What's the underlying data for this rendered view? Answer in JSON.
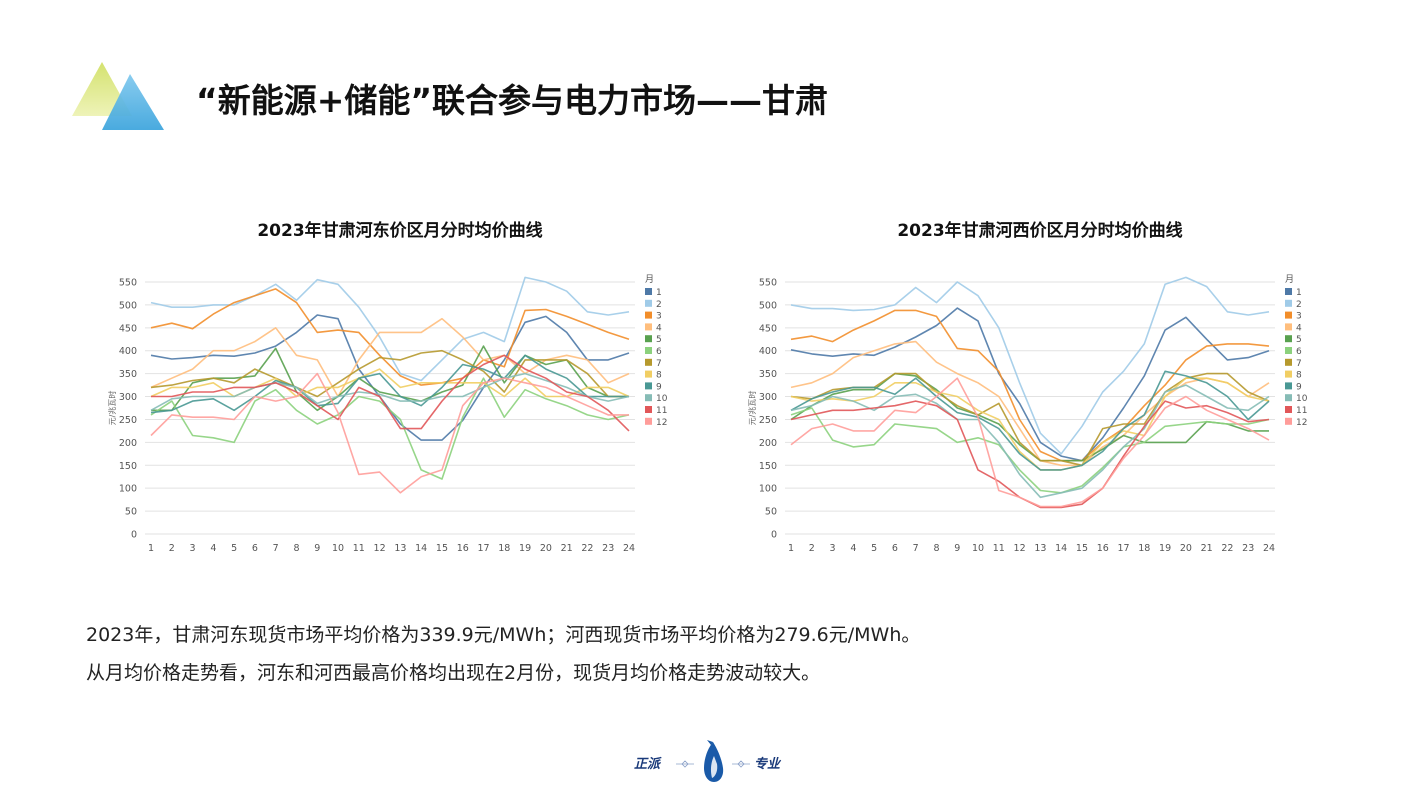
{
  "page": {
    "title": "“新能源+储能”联合参与电力市场——甘肃",
    "body_line1": "2023年，甘肃河东现货市场平均价格为339.9元/MWh；河西现货市场平均价格为279.6元/MWh。",
    "body_line2": "从月均价格走势看，河东和河西最高价格均出现在2月份，现货月均价格走势波动较大。"
  },
  "footer": {
    "left_text": "正派",
    "right_text": "专业",
    "icon": "penguin-logo-icon"
  },
  "logo": {
    "icon": "triangles-logo-icon",
    "colors": [
      "#c9dd6a",
      "#5ab7e6"
    ]
  },
  "chart_data": [
    {
      "type": "line",
      "title": "2023年甘肃河东价区月分时均价曲线",
      "ylabel": "元/兆瓦时",
      "ylim": [
        0,
        550
      ],
      "yticks": [
        0,
        50,
        100,
        150,
        200,
        250,
        300,
        350,
        400,
        450,
        500,
        550
      ],
      "x": [
        "1",
        "2",
        "3",
        "4",
        "5",
        "6",
        "7",
        "8",
        "9",
        "10",
        "11",
        "12",
        "13",
        "14",
        "15",
        "16",
        "17",
        "18",
        "19",
        "20",
        "21",
        "22",
        "23",
        "24"
      ],
      "legend_title": "月",
      "legend_position": "right",
      "grid": true,
      "series": [
        {
          "name": "1",
          "color": "#4e79a7",
          "values": [
            390,
            382,
            385,
            390,
            388,
            395,
            410,
            440,
            478,
            470,
            360,
            300,
            240,
            205,
            205,
            248,
            320,
            380,
            462,
            475,
            440,
            380,
            380,
            395
          ]
        },
        {
          "name": "2",
          "color": "#a0cbe8",
          "values": [
            505,
            495,
            495,
            500,
            500,
            520,
            545,
            510,
            555,
            545,
            495,
            430,
            350,
            335,
            380,
            425,
            440,
            420,
            560,
            550,
            530,
            485,
            478,
            485
          ]
        },
        {
          "name": "3",
          "color": "#f28e2b",
          "values": [
            450,
            460,
            448,
            480,
            505,
            520,
            535,
            505,
            440,
            445,
            440,
            390,
            345,
            325,
            330,
            340,
            380,
            365,
            488,
            490,
            475,
            458,
            440,
            425
          ]
        },
        {
          "name": "4",
          "color": "#ffbe7d",
          "values": [
            320,
            340,
            360,
            400,
            400,
            420,
            450,
            390,
            380,
            300,
            380,
            440,
            440,
            440,
            470,
            430,
            380,
            390,
            350,
            380,
            390,
            380,
            330,
            350
          ]
        },
        {
          "name": "5",
          "color": "#59a14f",
          "values": [
            270,
            270,
            330,
            340,
            340,
            345,
            405,
            310,
            270,
            300,
            340,
            310,
            300,
            290,
            310,
            325,
            410,
            330,
            390,
            370,
            380,
            320,
            300,
            300
          ]
        },
        {
          "name": "6",
          "color": "#8cd17d",
          "values": [
            260,
            290,
            215,
            210,
            200,
            290,
            315,
            270,
            240,
            260,
            300,
            290,
            250,
            140,
            120,
            255,
            340,
            255,
            315,
            295,
            280,
            260,
            250,
            260
          ]
        },
        {
          "name": "7",
          "color": "#b6992d",
          "values": [
            320,
            325,
            335,
            340,
            330,
            360,
            340,
            320,
            300,
            330,
            360,
            385,
            380,
            395,
            400,
            380,
            355,
            310,
            380,
            380,
            380,
            350,
            300,
            300
          ]
        },
        {
          "name": "8",
          "color": "#f1ce63",
          "values": [
            300,
            320,
            320,
            330,
            300,
            320,
            340,
            300,
            320,
            320,
            340,
            360,
            320,
            330,
            330,
            330,
            330,
            300,
            340,
            300,
            300,
            320,
            320,
            300
          ]
        },
        {
          "name": "9",
          "color": "#499894",
          "values": [
            265,
            270,
            290,
            295,
            270,
            300,
            335,
            320,
            280,
            285,
            340,
            350,
            300,
            280,
            320,
            370,
            360,
            340,
            390,
            360,
            340,
            300,
            300,
            300
          ]
        },
        {
          "name": "10",
          "color": "#86bcb6",
          "values": [
            270,
            295,
            300,
            300,
            300,
            320,
            330,
            320,
            285,
            300,
            310,
            305,
            290,
            290,
            300,
            300,
            320,
            340,
            350,
            335,
            320,
            300,
            290,
            300
          ]
        },
        {
          "name": "11",
          "color": "#e15759",
          "values": [
            300,
            300,
            310,
            310,
            320,
            320,
            330,
            310,
            280,
            250,
            320,
            300,
            230,
            230,
            290,
            340,
            370,
            390,
            360,
            340,
            310,
            300,
            270,
            225
          ]
        },
        {
          "name": "12",
          "color": "#ff9d9a",
          "values": [
            215,
            260,
            255,
            255,
            250,
            300,
            290,
            300,
            350,
            265,
            130,
            135,
            90,
            125,
            140,
            280,
            330,
            340,
            330,
            320,
            300,
            280,
            260,
            260
          ]
        }
      ]
    },
    {
      "type": "line",
      "title": "2023年甘肃河西价区月分时均价曲线",
      "ylabel": "元/兆瓦时",
      "ylim": [
        0,
        550
      ],
      "yticks": [
        0,
        50,
        100,
        150,
        200,
        250,
        300,
        350,
        400,
        450,
        500,
        550
      ],
      "x": [
        "1",
        "2",
        "3",
        "4",
        "5",
        "6",
        "7",
        "8",
        "9",
        "10",
        "11",
        "12",
        "13",
        "14",
        "15",
        "16",
        "17",
        "18",
        "19",
        "20",
        "21",
        "22",
        "23",
        "24"
      ],
      "legend_title": "月",
      "legend_position": "right",
      "grid": true,
      "series": [
        {
          "name": "1",
          "color": "#4e79a7",
          "values": [
            402,
            393,
            388,
            393,
            390,
            408,
            430,
            455,
            493,
            465,
            350,
            285,
            200,
            170,
            160,
            210,
            275,
            345,
            445,
            473,
            425,
            380,
            385,
            400
          ]
        },
        {
          "name": "2",
          "color": "#a0cbe8",
          "values": [
            500,
            492,
            492,
            488,
            490,
            500,
            538,
            505,
            550,
            520,
            450,
            330,
            220,
            175,
            235,
            310,
            355,
            415,
            545,
            560,
            540,
            485,
            478,
            485
          ]
        },
        {
          "name": "3",
          "color": "#f28e2b",
          "values": [
            425,
            432,
            420,
            445,
            465,
            488,
            488,
            475,
            405,
            400,
            355,
            250,
            180,
            160,
            160,
            200,
            230,
            280,
            325,
            380,
            410,
            415,
            415,
            410
          ]
        },
        {
          "name": "4",
          "color": "#ffbe7d",
          "values": [
            320,
            330,
            350,
            385,
            400,
            415,
            420,
            375,
            350,
            330,
            300,
            230,
            160,
            150,
            150,
            190,
            215,
            260,
            300,
            330,
            340,
            330,
            300,
            330
          ]
        },
        {
          "name": "5",
          "color": "#59a14f",
          "values": [
            250,
            280,
            305,
            315,
            315,
            350,
            345,
            315,
            275,
            260,
            240,
            195,
            160,
            160,
            160,
            185,
            215,
            200,
            200,
            200,
            245,
            240,
            225,
            225
          ]
        },
        {
          "name": "6",
          "color": "#8cd17d",
          "values": [
            260,
            275,
            205,
            190,
            195,
            240,
            235,
            230,
            200,
            210,
            195,
            140,
            95,
            90,
            105,
            145,
            190,
            200,
            235,
            240,
            245,
            240,
            240,
            250
          ]
        },
        {
          "name": "7",
          "color": "#b6992d",
          "values": [
            300,
            295,
            315,
            320,
            320,
            350,
            350,
            310,
            280,
            260,
            285,
            200,
            160,
            160,
            150,
            230,
            240,
            240,
            310,
            340,
            350,
            350,
            310,
            290
          ]
        },
        {
          "name": "8",
          "color": "#f1ce63",
          "values": [
            300,
            290,
            295,
            290,
            300,
            330,
            330,
            310,
            300,
            270,
            250,
            180,
            140,
            140,
            150,
            200,
            225,
            215,
            300,
            340,
            340,
            330,
            300,
            290
          ]
        },
        {
          "name": "9",
          "color": "#499894",
          "values": [
            270,
            295,
            310,
            320,
            320,
            305,
            340,
            300,
            265,
            255,
            230,
            175,
            140,
            140,
            150,
            180,
            230,
            260,
            355,
            345,
            330,
            300,
            250,
            290
          ]
        },
        {
          "name": "10",
          "color": "#86bcb6",
          "values": [
            270,
            280,
            300,
            290,
            270,
            300,
            305,
            285,
            250,
            250,
            200,
            130,
            80,
            90,
            100,
            140,
            190,
            230,
            310,
            325,
            300,
            275,
            270,
            300
          ]
        },
        {
          "name": "11",
          "color": "#e15759",
          "values": [
            250,
            260,
            270,
            270,
            275,
            280,
            290,
            280,
            250,
            140,
            115,
            80,
            58,
            58,
            65,
            100,
            170,
            235,
            290,
            275,
            280,
            265,
            245,
            250
          ]
        },
        {
          "name": "12",
          "color": "#ff9d9a",
          "values": [
            195,
            230,
            240,
            225,
            225,
            270,
            265,
            300,
            340,
            255,
            95,
            80,
            60,
            60,
            70,
            100,
            165,
            215,
            275,
            300,
            270,
            250,
            230,
            205
          ]
        }
      ]
    }
  ]
}
